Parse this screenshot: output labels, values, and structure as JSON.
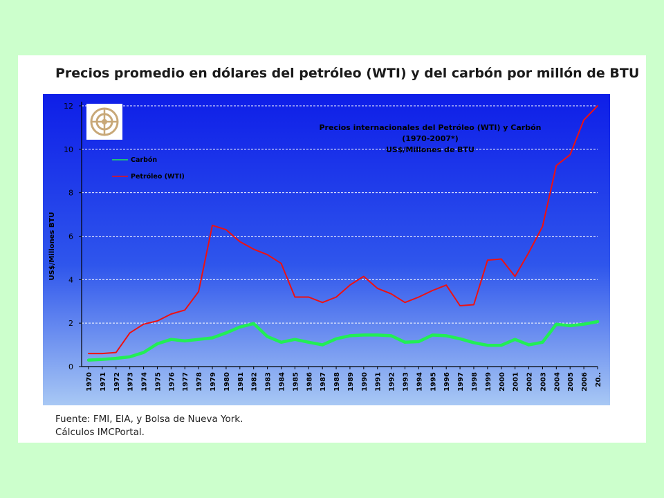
{
  "slide": {
    "title": "Precios promedio en dólares del petróleo (WTI) y del carbón por millón de BTU",
    "source_line1": "Fuente: FMI, EIA, y Bolsa de Nueva York.",
    "source_line2": "Cálculos IMCPortal."
  },
  "colors": {
    "background": "#ccffcc",
    "coal": "#22ee55",
    "oil": "#ee1111",
    "plot_top": "#0e1ee8",
    "plot_bottom": "#a8c8f4"
  },
  "icons": {
    "logo": "emblem-logo-icon"
  },
  "chart_data": {
    "type": "line",
    "title_lines": [
      "Precios internacionales  del Petróleo (WTI) y Carbón",
      "(1970-2007*)",
      "US$/Millones  de BTU"
    ],
    "ylabel": "US$/Millones BTU",
    "xlabel": "",
    "ylim": [
      0,
      12
    ],
    "yticks": [
      "0",
      "2",
      "4",
      "6",
      "8",
      "10",
      "12"
    ],
    "grid": true,
    "legend_position": "top-left",
    "categories": [
      "1970",
      "1971",
      "1972",
      "1973",
      "1974",
      "1975",
      "1976",
      "1977",
      "1978",
      "1979",
      "1980",
      "1981",
      "1982",
      "1983",
      "1984",
      "1985",
      "1986",
      "1987",
      "1988",
      "1989",
      "1990",
      "1991",
      "1992",
      "1993",
      "1994",
      "1995",
      "1996",
      "1997",
      "1998",
      "1999",
      "2000",
      "2001",
      "2002",
      "2003",
      "2004",
      "2005",
      "2006",
      "20.."
    ],
    "series": [
      {
        "name": "Carbón",
        "color": "#22ee55",
        "values": [
          0.3,
          0.33,
          0.38,
          0.45,
          0.65,
          1.05,
          1.25,
          1.18,
          1.25,
          1.32,
          1.55,
          1.82,
          1.98,
          1.38,
          1.12,
          1.25,
          1.12,
          1.0,
          1.28,
          1.42,
          1.45,
          1.45,
          1.42,
          1.12,
          1.15,
          1.45,
          1.42,
          1.28,
          1.1,
          0.98,
          0.98,
          1.25,
          1.0,
          1.12,
          1.95,
          1.88,
          1.95,
          2.07
        ]
      },
      {
        "name": "Petróleo (WTI)",
        "color": "#ee1111",
        "values": [
          0.6,
          0.6,
          0.65,
          1.55,
          1.95,
          2.1,
          2.42,
          2.6,
          3.45,
          6.5,
          6.3,
          5.75,
          5.4,
          5.15,
          4.75,
          3.2,
          3.2,
          2.95,
          3.2,
          3.75,
          4.15,
          3.6,
          3.35,
          2.95,
          3.2,
          3.5,
          3.75,
          2.8,
          2.85,
          4.9,
          4.95,
          4.15,
          5.25,
          6.45,
          9.25,
          9.75,
          11.35,
          12.0
        ]
      }
    ]
  }
}
